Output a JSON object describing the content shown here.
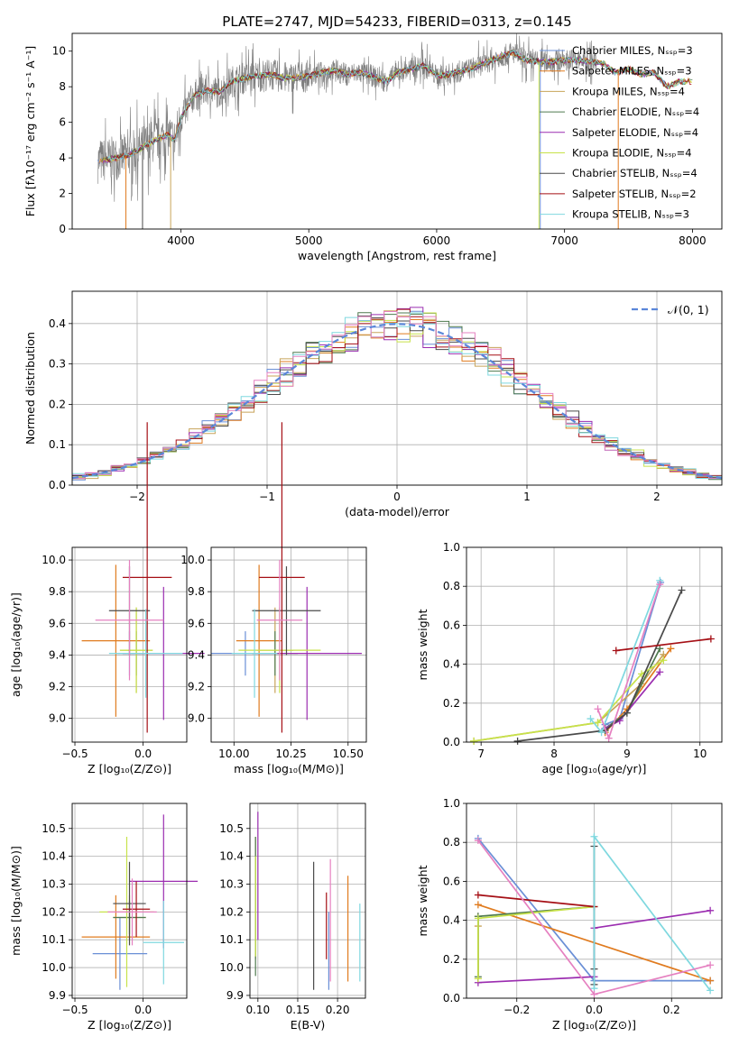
{
  "figure_title": "PLATE=2747, MJD=54233, FIBERID=0313, z=0.145",
  "colors": {
    "chabrier_miles": "#6a8fd6",
    "salpeter_miles": "#e07b1f",
    "kroupa_miles": "#c8a45a",
    "chabrier_elodie": "#4f7a4f",
    "salpeter_elodie": "#9b2db0",
    "kroupa_elodie": "#c7e24a",
    "chabrier_stelib": "#4a4a4a",
    "salpeter_stelib": "#a50f15",
    "kroupa_stelib": "#7fd8df",
    "extra_pink": "#e580c0",
    "extra_green": "#7cc24a",
    "normal_curve": "#5b87d9"
  },
  "chart_data": [
    {
      "id": "spectrum",
      "type": "line",
      "xlabel": "wavelength [Angstrom, rest frame]",
      "ylabel": "Flux [fλ10⁻¹⁷ erg cm⁻² s⁻¹ A⁻¹]",
      "xlim": [
        3150,
        8230
      ],
      "ylim": [
        0,
        11
      ],
      "xticks": [
        "4000",
        "5000",
        "6000",
        "7000",
        "8000"
      ],
      "yticks": [
        "0",
        "2",
        "4",
        "6",
        "8",
        "10"
      ],
      "legend_position": "top-right",
      "legend": [
        "Chabrier MILES, Nₛₛₚ=3",
        "Salpeter MILES, Nₛₛₚ=3",
        "Kroupa MILES, Nₛₛₚ=4",
        "Chabrier ELODIE, Nₛₛₚ=4",
        "Salpeter ELODIE, Nₛₛₚ=4",
        "Kroupa ELODIE, Nₛₛₚ=4",
        "Chabrier STELIB, Nₛₛₚ=4",
        "Salpeter STELIB, Nₛₛₚ=2",
        "Kroupa STELIB, Nₛₛₚ=3"
      ],
      "envelope": {
        "x": [
          3350,
          3500,
          3600,
          3700,
          3800,
          3900,
          3950,
          4000,
          4100,
          4200,
          4300,
          4400,
          4500,
          4600,
          4700,
          4800,
          4900,
          5000,
          5100,
          5200,
          5300,
          5400,
          5500,
          5600,
          5700,
          5800,
          5900,
          6000,
          6100,
          6200,
          6300,
          6400,
          6500,
          6600,
          6700,
          6800,
          6900,
          7000,
          7100,
          7200,
          7300,
          7400,
          7500,
          7600,
          7700,
          7800,
          7900,
          8000
        ],
        "y": [
          3.8,
          4.0,
          4.2,
          4.6,
          5.0,
          5.3,
          5.0,
          6.2,
          7.5,
          7.8,
          7.7,
          8.3,
          8.5,
          8.6,
          8.7,
          8.5,
          8.5,
          8.6,
          8.8,
          8.9,
          8.7,
          8.8,
          8.6,
          8.3,
          8.8,
          9.0,
          9.2,
          8.6,
          8.7,
          8.9,
          9.1,
          9.4,
          9.7,
          9.9,
          9.5,
          9.4,
          9.4,
          9.5,
          9.5,
          9.4,
          9.3,
          8.8,
          9.0,
          8.7,
          8.8,
          8.0,
          8.3,
          8.3
        ]
      }
    },
    {
      "id": "residuals",
      "type": "line",
      "xlabel": "(data-model)/error",
      "ylabel": "Normed distribution",
      "xlim": [
        -2.5,
        2.5
      ],
      "ylim": [
        0,
        0.48
      ],
      "xticks": [
        "−2",
        "−1",
        "0",
        "1",
        "2"
      ],
      "yticks": [
        "0.0",
        "0.1",
        "0.2",
        "0.3",
        "0.4"
      ],
      "legend": [
        "𝒩(0, 1)"
      ],
      "legend_position": "top-right",
      "normal": {
        "mean": 0,
        "sigma": 1
      },
      "bin_width": 0.1
    },
    {
      "id": "age_vs_Z",
      "type": "scatter",
      "xlabel": "Z [log₁₀(Z/Z⊙)]",
      "ylabel": "age  [log₁₀(age/yr)]",
      "xlim": [
        -0.52,
        0.32
      ],
      "ylim": [
        8.85,
        10.08
      ],
      "xticks": [
        "−0.5",
        "0.0"
      ],
      "yticks": [
        "9.0",
        "9.2",
        "9.4",
        "9.6",
        "9.8",
        "10.0"
      ],
      "points": [
        {
          "model": "chabrier_miles",
          "x": -0.1,
          "y": 9.41,
          "xerr": 0.1,
          "yerr": 0.14
        },
        {
          "model": "salpeter_miles",
          "x": -0.2,
          "y": 9.49,
          "xerr": 0.25,
          "yerr": 0.48
        },
        {
          "model": "kroupa_miles",
          "x": -0.05,
          "y": 9.43,
          "xerr": 0.12,
          "yerr": 0.27
        },
        {
          "model": "chabrier_elodie",
          "x": -0.05,
          "y": 9.41,
          "xerr": 0.1,
          "yerr": 0.14
        },
        {
          "model": "salpeter_elodie",
          "x": 0.15,
          "y": 9.41,
          "xerr": 0.3,
          "yerr": 0.42
        },
        {
          "model": "kroupa_elodie",
          "x": -0.05,
          "y": 9.43,
          "xerr": 0.12,
          "yerr": 0.27
        },
        {
          "model": "chabrier_stelib",
          "x": -0.1,
          "y": 9.68,
          "xerr": 0.15,
          "yerr": 0.28
        },
        {
          "model": "salpeter_stelib",
          "x": 0.03,
          "y": 9.89,
          "xerr": 0.18,
          "yerr": 0.98
        },
        {
          "model": "kroupa_stelib",
          "x": 0.02,
          "y": 9.41,
          "xerr": 0.27,
          "yerr": 0.28
        },
        {
          "model": "extra_pink",
          "x": -0.1,
          "y": 9.62,
          "xerr": 0.25,
          "yerr": 0.38
        }
      ]
    },
    {
      "id": "age_vs_mass",
      "type": "scatter",
      "xlabel": "mass [log₁₀(M/M⊙)]",
      "ylabel": "",
      "xlim": [
        9.9,
        10.58
      ],
      "ylim": [
        8.85,
        10.08
      ],
      "xticks": [
        "10.00",
        "10.25",
        "10.50"
      ],
      "yticks": [
        "9.0",
        "9.2",
        "9.4",
        "9.6",
        "9.8",
        "10.0"
      ],
      "points": [
        {
          "model": "chabrier_miles",
          "x": 10.05,
          "y": 9.41,
          "xerr": 0.15,
          "yerr": 0.14
        },
        {
          "model": "salpeter_miles",
          "x": 10.11,
          "y": 9.49,
          "xerr": 0.1,
          "yerr": 0.48
        },
        {
          "model": "kroupa_miles",
          "x": 10.18,
          "y": 9.43,
          "xerr": 0.08,
          "yerr": 0.27
        },
        {
          "model": "chabrier_elodie",
          "x": 10.18,
          "y": 9.41,
          "xerr": 0.1,
          "yerr": 0.14
        },
        {
          "model": "salpeter_elodie",
          "x": 10.32,
          "y": 9.41,
          "xerr": 0.24,
          "yerr": 0.42
        },
        {
          "model": "kroupa_elodie",
          "x": 10.2,
          "y": 9.43,
          "xerr": 0.18,
          "yerr": 0.27
        },
        {
          "model": "chabrier_stelib",
          "x": 10.23,
          "y": 9.68,
          "xerr": 0.15,
          "yerr": 0.28
        },
        {
          "model": "salpeter_stelib",
          "x": 10.21,
          "y": 9.89,
          "xerr": 0.1,
          "yerr": 0.98
        },
        {
          "model": "kroupa_stelib",
          "x": 10.09,
          "y": 9.41,
          "xerr": 0.1,
          "yerr": 0.28
        },
        {
          "model": "extra_pink",
          "x": 10.2,
          "y": 9.62,
          "xerr": 0.1,
          "yerr": 0.38
        }
      ]
    },
    {
      "id": "weight_vs_age",
      "type": "line",
      "xlabel": "age  [log₁₀(age/yr)]",
      "ylabel": "mass weight",
      "xlim": [
        6.8,
        10.3
      ],
      "ylim": [
        0,
        1.0
      ],
      "xticks": [
        "7",
        "8",
        "9",
        "10"
      ],
      "yticks": [
        "0.0",
        "0.2",
        "0.4",
        "0.6",
        "0.8",
        "1.0"
      ],
      "series": [
        {
          "model": "chabrier_miles",
          "x": [
            8.7,
            8.9,
            9.46
          ],
          "y": [
            0.09,
            0.12,
            0.82
          ]
        },
        {
          "model": "salpeter_miles",
          "x": [
            8.7,
            9.0,
            9.6
          ],
          "y": [
            0.05,
            0.17,
            0.48
          ]
        },
        {
          "model": "kroupa_miles",
          "x": [
            6.9,
            8.6,
            9.2,
            9.5
          ],
          "y": [
            0.005,
            0.1,
            0.3,
            0.45
          ]
        },
        {
          "model": "chabrier_elodie",
          "x": [
            8.7,
            9.0,
            9.45
          ],
          "y": [
            0.07,
            0.15,
            0.48
          ]
        },
        {
          "model": "salpeter_elodie",
          "x": [
            8.7,
            8.9,
            9.45
          ],
          "y": [
            0.07,
            0.11,
            0.36
          ]
        },
        {
          "model": "kroupa_elodie",
          "x": [
            6.9,
            8.6,
            9.2,
            9.5
          ],
          "y": [
            0.005,
            0.1,
            0.35,
            0.42
          ]
        },
        {
          "model": "chabrier_stelib",
          "x": [
            7.5,
            8.7,
            9.0,
            9.75
          ],
          "y": [
            0.005,
            0.06,
            0.15,
            0.78
          ]
        },
        {
          "model": "salpeter_stelib",
          "x": [
            8.85,
            10.15
          ],
          "y": [
            0.47,
            0.53
          ]
        },
        {
          "model": "kroupa_stelib",
          "x": [
            8.5,
            8.65,
            9.45
          ],
          "y": [
            0.12,
            0.05,
            0.83
          ]
        },
        {
          "model": "extra_pink",
          "x": [
            8.6,
            8.75,
            9.45
          ],
          "y": [
            0.17,
            0.02,
            0.81
          ]
        }
      ]
    },
    {
      "id": "mass_vs_Z",
      "type": "scatter",
      "xlabel": "Z [log₁₀(Z/Z⊙)]",
      "ylabel": "mass [log₁₀(M/M⊙)]",
      "xlim": [
        -0.52,
        0.32
      ],
      "ylim": [
        9.89,
        10.59
      ],
      "xticks": [
        "−0.5",
        "0.0"
      ],
      "yticks": [
        "9.9",
        "10.0",
        "10.1",
        "10.2",
        "10.3",
        "10.4",
        "10.5"
      ],
      "points": [
        {
          "model": "chabrier_miles",
          "x": -0.17,
          "y": 10.05,
          "xerr": 0.2,
          "yerr": 0.13
        },
        {
          "model": "salpeter_miles",
          "x": -0.2,
          "y": 10.11,
          "xerr": 0.25,
          "yerr": 0.15
        },
        {
          "model": "kroupa_miles",
          "x": -0.1,
          "y": 10.18,
          "xerr": 0.12,
          "yerr": 0.08
        },
        {
          "model": "chabrier_elodie",
          "x": -0.1,
          "y": 10.18,
          "xerr": 0.12,
          "yerr": 0.06
        },
        {
          "model": "salpeter_elodie",
          "x": 0.15,
          "y": 10.31,
          "xerr": 0.25,
          "yerr": 0.24
        },
        {
          "model": "kroupa_elodie",
          "x": -0.12,
          "y": 10.2,
          "xerr": 0.2,
          "yerr": 0.27
        },
        {
          "model": "chabrier_stelib",
          "x": -0.1,
          "y": 10.23,
          "xerr": 0.12,
          "yerr": 0.15
        },
        {
          "model": "salpeter_stelib",
          "x": -0.05,
          "y": 10.21,
          "xerr": 0.1,
          "yerr": 0.1
        },
        {
          "model": "kroupa_stelib",
          "x": 0.15,
          "y": 10.09,
          "xerr": 0.15,
          "yerr": 0.15
        },
        {
          "model": "extra_pink",
          "x": -0.08,
          "y": 10.2,
          "xerr": 0.18,
          "yerr": 0.12
        }
      ]
    },
    {
      "id": "mass_vs_ebv",
      "type": "scatter",
      "xlabel": "E(B-V)",
      "ylabel": "",
      "xlim": [
        0.09,
        0.235
      ],
      "ylim": [
        9.89,
        10.59
      ],
      "xticks": [
        "0.10",
        "0.15",
        "0.20"
      ],
      "yticks": [
        "9.9",
        "10.0",
        "10.1",
        "10.2",
        "10.3",
        "10.4",
        "10.5"
      ],
      "points": [
        {
          "model": "chabrier_miles",
          "x": 0.189,
          "y": 10.06,
          "yerr": 0.14
        },
        {
          "model": "salpeter_miles",
          "x": 0.213,
          "y": 10.14,
          "yerr": 0.19
        },
        {
          "model": "kroupa_miles",
          "x": 0.097,
          "y": 10.25,
          "yerr": 0.22
        },
        {
          "model": "chabrier_elodie",
          "x": 0.097,
          "y": 10.22,
          "yerr": 0.25
        },
        {
          "model": "salpeter_elodie",
          "x": 0.1,
          "y": 10.33,
          "yerr": 0.23
        },
        {
          "model": "kroupa_elodie",
          "x": 0.097,
          "y": 10.22,
          "yerr": 0.18
        },
        {
          "model": "chabrier_stelib",
          "x": 0.17,
          "y": 10.15,
          "yerr": 0.23
        },
        {
          "model": "salpeter_stelib",
          "x": 0.186,
          "y": 10.15,
          "yerr": 0.12
        },
        {
          "model": "kroupa_stelib",
          "x": 0.228,
          "y": 10.09,
          "yerr": 0.14
        },
        {
          "model": "extra_pink",
          "x": 0.191,
          "y": 10.17,
          "yerr": 0.22
        }
      ]
    },
    {
      "id": "weight_vs_Z",
      "type": "line",
      "xlabel": "Z [log₁₀(Z/Z⊙)]",
      "ylabel": "mass weight",
      "xlim": [
        -0.33,
        0.33
      ],
      "ylim": [
        0,
        1.0
      ],
      "xticks": [
        "−0.2",
        "0.0",
        "0.2"
      ],
      "yticks": [
        "0.0",
        "0.2",
        "0.4",
        "0.6",
        "0.8",
        "1.0"
      ],
      "series": [
        {
          "model": "chabrier_miles",
          "x": [
            -0.3,
            0.0,
            0.3
          ],
          "y": [
            0.82,
            0.09,
            0.09
          ]
        },
        {
          "model": "salpeter_miles",
          "x": [
            -0.3,
            0.3
          ],
          "y": [
            0.48,
            0.09
          ]
        },
        {
          "model": "kroupa_miles",
          "x": [
            -0.3,
            -0.3,
            -0.3
          ],
          "y": [
            0.37,
            0.1,
            0.42
          ]
        },
        {
          "model": "chabrier_elodie",
          "x": [
            -0.3,
            -0.3,
            0.0
          ],
          "y": [
            0.11,
            0.42,
            0.47
          ]
        },
        {
          "model": "salpeter_elodie",
          "x": [
            -0.3,
            0.0,
            0.0,
            0.3
          ],
          "y": [
            0.08,
            0.11,
            0.36,
            0.45
          ]
        },
        {
          "model": "kroupa_elodie",
          "x": [
            -0.3,
            -0.3,
            0.0
          ],
          "y": [
            0.1,
            0.41,
            0.47
          ]
        },
        {
          "model": "chabrier_stelib",
          "x": [
            0.0,
            0.0,
            0.0
          ],
          "y": [
            0.78,
            0.07,
            0.15
          ]
        },
        {
          "model": "salpeter_stelib",
          "x": [
            -0.3,
            0.0
          ],
          "y": [
            0.53,
            0.47
          ]
        },
        {
          "model": "kroupa_stelib",
          "x": [
            0.0,
            0.0,
            0.3
          ],
          "y": [
            0.05,
            0.83,
            0.04
          ]
        },
        {
          "model": "extra_pink",
          "x": [
            -0.3,
            0.0,
            0.3
          ],
          "y": [
            0.81,
            0.02,
            0.17
          ]
        }
      ]
    }
  ]
}
